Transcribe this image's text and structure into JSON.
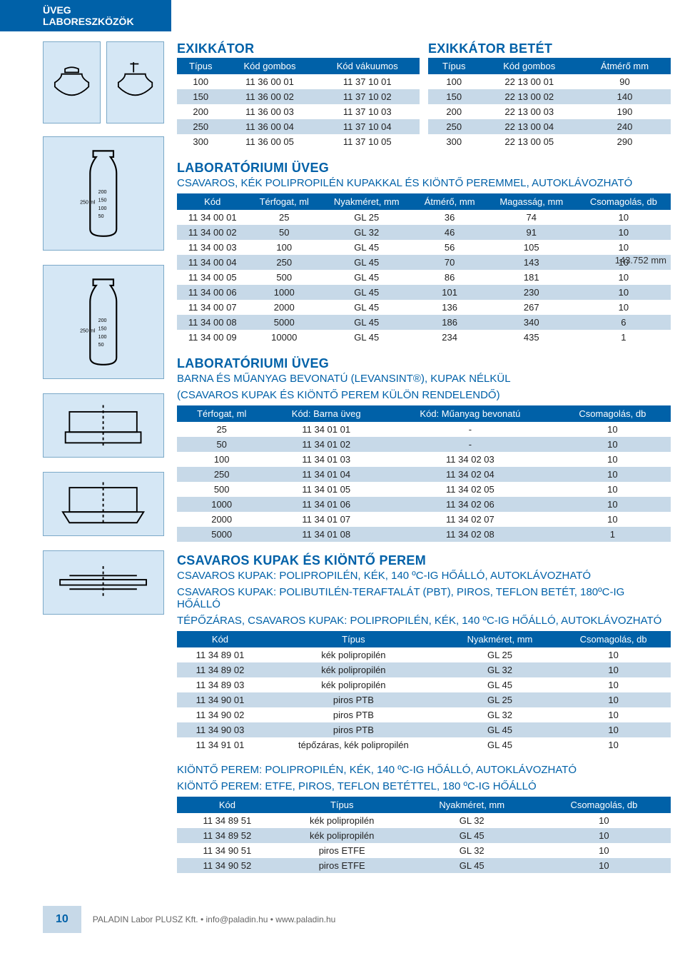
{
  "header": "ÜVEG LABORESZKÖZÖK",
  "s1": {
    "t1_title": "EXIKKÁTOR",
    "t1_cols": [
      "Típus",
      "Kód gombos",
      "Kód vákuumos"
    ],
    "t1_rows": [
      [
        "100",
        "11 36 00 01",
        "11 37 10 01"
      ],
      [
        "150",
        "11 36 00 02",
        "11 37 10 02"
      ],
      [
        "200",
        "11 36 00 03",
        "11 37 10 03"
      ],
      [
        "250",
        "11 36 00 04",
        "11 37 10 04"
      ],
      [
        "300",
        "11 36 00 05",
        "11 37 10 05"
      ]
    ],
    "t2_title": "EXIKKÁTOR BETÉT",
    "t2_cols": [
      "Típus",
      "Kód gombos",
      "Átmérő mm"
    ],
    "t2_rows": [
      [
        "100",
        "22 13 00 01",
        "90"
      ],
      [
        "150",
        "22 13 00 02",
        "140"
      ],
      [
        "200",
        "22 13 00 03",
        "190"
      ],
      [
        "250",
        "22 13 00 04",
        "240"
      ],
      [
        "300",
        "22 13 00 05",
        "290"
      ]
    ]
  },
  "s2": {
    "title": "LABORATÓRIUMI ÜVEG",
    "sub": "CSAVAROS, KÉK POLIPROPILÉN KUPAKKAL ÉS KIÖNTŐ PEREMMEL, AUTOKLÁVOZHATÓ",
    "cols": [
      "Kód",
      "Térfogat, ml",
      "Nyakméret, mm",
      "Átmérő, mm",
      "Magasság, mm",
      "Csomagolás, db"
    ],
    "rows": [
      [
        "11 34 00 01",
        "25",
        "GL 25",
        "36",
        "74",
        "10"
      ],
      [
        "11 34 00 02",
        "50",
        "GL 32",
        "46",
        "91",
        "10"
      ],
      [
        "11 34 00 03",
        "100",
        "GL 45",
        "56",
        "105",
        "10"
      ],
      [
        "11 34 00 04",
        "250",
        "GL 45",
        "70",
        "143",
        "10"
      ],
      [
        "11 34 00 05",
        "500",
        "GL 45",
        "86",
        "181",
        "10"
      ],
      [
        "11 34 00 06",
        "1000",
        "GL 45",
        "101",
        "230",
        "10"
      ],
      [
        "11 34 00 07",
        "2000",
        "GL 45",
        "136",
        "267",
        "10"
      ],
      [
        "11 34 00 08",
        "5000",
        "GL 45",
        "186",
        "340",
        "6"
      ],
      [
        "11 34 00 09",
        "10000",
        "GL 45",
        "234",
        "435",
        "1"
      ]
    ],
    "note": "143.752 mm"
  },
  "s3": {
    "title": "LABORATÓRIUMI ÜVEG",
    "sub1": "BARNA ÉS MŰANYAG BEVONATÚ (LEVANSINT®), KUPAK NÉLKÜL",
    "sub2": "(CSAVAROS KUPAK ÉS KIÖNTŐ PEREM KÜLÖN RENDELENDŐ)",
    "cols": [
      "Térfogat, ml",
      "Kód: Barna üveg",
      "Kód: Műanyag bevonatú",
      "Csomagolás, db"
    ],
    "rows": [
      [
        "25",
        "11 34 01 01",
        "-",
        "10"
      ],
      [
        "50",
        "11 34 01 02",
        "-",
        "10"
      ],
      [
        "100",
        "11 34 01 03",
        "11 34 02 03",
        "10"
      ],
      [
        "250",
        "11 34 01 04",
        "11 34 02 04",
        "10"
      ],
      [
        "500",
        "11 34 01 05",
        "11 34 02 05",
        "10"
      ],
      [
        "1000",
        "11 34 01 06",
        "11 34 02 06",
        "10"
      ],
      [
        "2000",
        "11 34 01 07",
        "11 34 02 07",
        "10"
      ],
      [
        "5000",
        "11 34 01 08",
        "11 34 02 08",
        "1"
      ]
    ]
  },
  "s4": {
    "title": "CSAVAROS KUPAK ÉS KIÖNTŐ PEREM",
    "sub1": "CSAVAROS KUPAK: POLIPROPILÉN, KÉK, 140 ºC-IG HŐÁLLÓ, AUTOKLÁVOZHATÓ",
    "sub2": "CSAVAROS KUPAK: POLIBUTILÉN-TERAFTALÁT (PBT), PIROS, TEFLON BETÉT, 180ºC-IG HŐÁLLÓ",
    "sub3": "TÉPŐZÁRAS, CSAVAROS KUPAK: POLIPROPILÉN, KÉK, 140 ºC-IG HŐÁLLÓ, AUTOKLÁVOZHATÓ",
    "cols": [
      "Kód",
      "Típus",
      "Nyakméret, mm",
      "Csomagolás, db"
    ],
    "rows": [
      [
        "11 34 89 01",
        "kék polipropilén",
        "GL 25",
        "10"
      ],
      [
        "11 34 89 02",
        "kék polipropilén",
        "GL 32",
        "10"
      ],
      [
        "11 34 89 03",
        "kék polipropilén",
        "GL 45",
        "10"
      ],
      [
        "11 34 90 01",
        "piros PTB",
        "GL 25",
        "10"
      ],
      [
        "11 34 90 02",
        "piros PTB",
        "GL 32",
        "10"
      ],
      [
        "11 34 90 03",
        "piros PTB",
        "GL 45",
        "10"
      ],
      [
        "11 34 91 01",
        "tépőzáras, kék polipropilén",
        "GL 45",
        "10"
      ]
    ]
  },
  "s5": {
    "sub1": "KIÖNTŐ PEREM: POLIPROPILÉN, KÉK, 140 ºC-IG HŐÁLLÓ, AUTOKLÁVOZHATÓ",
    "sub2": "KIÖNTŐ PEREM: ETFE, PIROS, TEFLON BETÉTTEL, 180 ºC-IG HŐÁLLÓ",
    "cols": [
      "Kód",
      "Típus",
      "Nyakméret, mm",
      "Csomagolás, db"
    ],
    "rows": [
      [
        "11 34 89 51",
        "kék polipropilén",
        "GL 32",
        "10"
      ],
      [
        "11 34 89 52",
        "kék polipropilén",
        "GL 45",
        "10"
      ],
      [
        "11 34 90 51",
        "piros ETFE",
        "GL 32",
        "10"
      ],
      [
        "11 34 90 52",
        "piros ETFE",
        "GL 45",
        "10"
      ]
    ]
  },
  "footer": {
    "page": "10",
    "text": "PALADIN Labor PLUSZ Kft. • info@paladin.hu • www.paladin.hu"
  }
}
